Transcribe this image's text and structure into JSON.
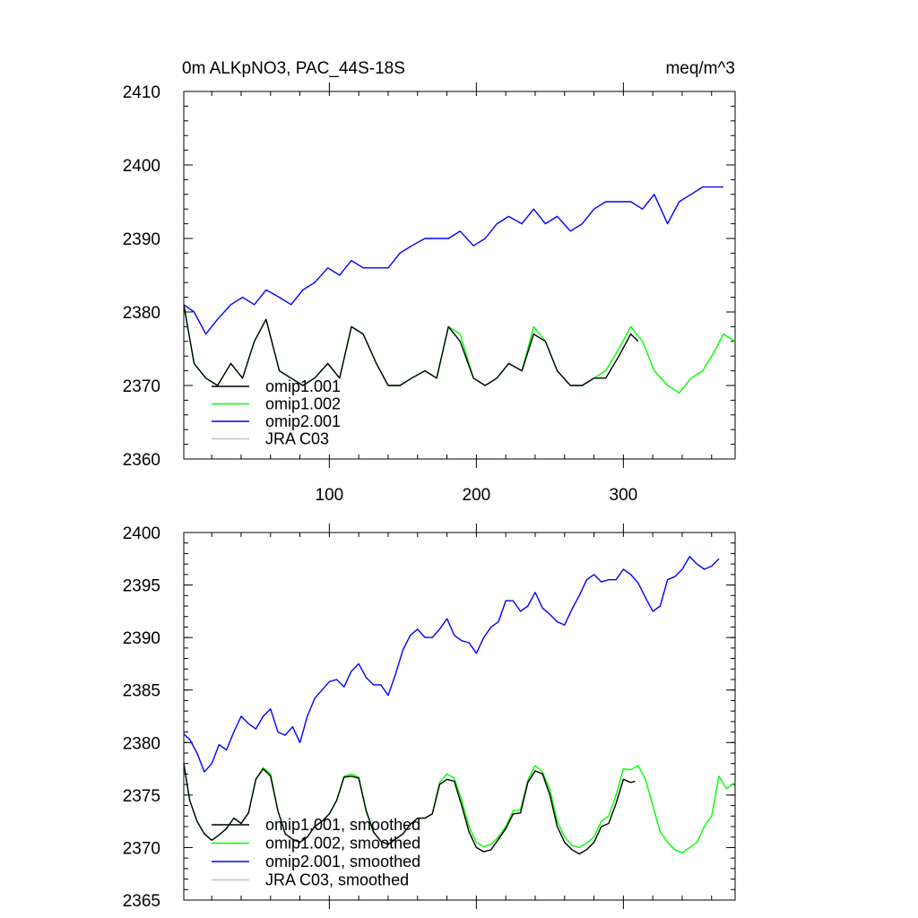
{
  "chart_data": [
    {
      "type": "line",
      "title": "0m ALKpNO3, PAC_44S-18S",
      "units": "meq/m^3",
      "xlabel": "",
      "ylabel": "",
      "xlim": [
        1,
        376
      ],
      "ylim": [
        2360,
        2410
      ],
      "xticks": [
        100,
        200,
        300
      ],
      "yticks": [
        2360,
        2370,
        2380,
        2390,
        2400,
        2410
      ],
      "legend_position": "bottom-left",
      "series": [
        {
          "name": "omip1.001",
          "color": "#000000",
          "x": [
            1,
            8,
            16,
            24,
            33,
            41,
            49,
            57,
            66,
            74,
            82,
            90,
            99,
            107,
            115,
            123,
            132,
            140,
            148,
            156,
            165,
            173,
            181,
            189,
            198,
            206,
            214,
            222,
            231,
            239,
            247,
            255,
            264,
            272,
            280,
            288,
            297,
            305,
            310
          ],
          "y": [
            2381,
            2373,
            2371,
            2370,
            2373,
            2371,
            2376,
            2379,
            2372,
            2371,
            2370,
            2371,
            2373,
            2371,
            2378,
            2377,
            2373,
            2370,
            2370,
            2371,
            2372,
            2371,
            2378,
            2376,
            2371,
            2370,
            2371,
            2373,
            2372,
            2377,
            2376,
            2372,
            2370,
            2370,
            2371,
            2371,
            2374,
            2377,
            2376
          ]
        },
        {
          "name": "omip1.002",
          "color": "#00ff00",
          "x": [
            1,
            8,
            16,
            24,
            33,
            41,
            49,
            57,
            66,
            74,
            82,
            90,
            99,
            107,
            115,
            123,
            132,
            140,
            148,
            156,
            165,
            173,
            181,
            189,
            198,
            206,
            214,
            222,
            231,
            239,
            247,
            255,
            264,
            272,
            280,
            288,
            297,
            305,
            313,
            321,
            330,
            338,
            346,
            354,
            363,
            368,
            376
          ],
          "y": [
            2381,
            2373,
            2371,
            2370,
            2373,
            2371,
            2376,
            2379,
            2372,
            2371,
            2370,
            2371,
            2373,
            2371,
            2378,
            2377,
            2373,
            2370,
            2370,
            2371,
            2372,
            2371,
            2378,
            2377,
            2371,
            2370,
            2371,
            2373,
            2372,
            2378,
            2376,
            2372,
            2370,
            2370,
            2371,
            2372,
            2375,
            2378,
            2376,
            2372,
            2370,
            2369,
            2371,
            2372,
            2375,
            2377,
            2376
          ]
        },
        {
          "name": "omip2.001",
          "color": "#0000ff",
          "x": [
            1,
            8,
            16,
            24,
            33,
            41,
            49,
            57,
            66,
            74,
            82,
            90,
            99,
            107,
            115,
            123,
            132,
            140,
            148,
            156,
            165,
            173,
            181,
            189,
            198,
            206,
            214,
            222,
            231,
            239,
            247,
            255,
            264,
            272,
            280,
            288,
            297,
            305,
            313,
            321,
            330,
            338,
            346,
            354,
            363,
            368
          ],
          "y": [
            2381,
            2380,
            2377,
            2379,
            2381,
            2382,
            2381,
            2383,
            2382,
            2381,
            2383,
            2384,
            2386,
            2385,
            2387,
            2386,
            2386,
            2386,
            2388,
            2389,
            2390,
            2390,
            2390,
            2391,
            2389,
            2390,
            2392,
            2393,
            2392,
            2394,
            2392,
            2393,
            2391,
            2392,
            2394,
            2395,
            2395,
            2395,
            2394,
            2396,
            2392,
            2395,
            2396,
            2397,
            2397,
            2397
          ]
        },
        {
          "name": "JRA C03",
          "color": "#c0c0c0",
          "x": [],
          "y": []
        }
      ]
    },
    {
      "type": "line",
      "title": "",
      "xlabel": "",
      "ylabel": "",
      "xlim": [
        1,
        376
      ],
      "ylim": [
        2365,
        2400
      ],
      "xticks": [
        100,
        200,
        300
      ],
      "yticks": [
        2365,
        2370,
        2375,
        2380,
        2385,
        2390,
        2395,
        2400
      ],
      "legend_position": "bottom-left",
      "series": [
        {
          "name": "omip1.001, smoothed",
          "color": "#000000",
          "x": [
            1,
            5,
            10,
            15,
            20,
            25,
            30,
            35,
            40,
            45,
            50,
            55,
            60,
            65,
            70,
            75,
            80,
            85,
            90,
            95,
            100,
            105,
            110,
            115,
            120,
            125,
            130,
            135,
            140,
            145,
            150,
            155,
            160,
            165,
            170,
            175,
            180,
            185,
            190,
            195,
            200,
            205,
            210,
            215,
            220,
            225,
            230,
            235,
            240,
            245,
            250,
            255,
            260,
            265,
            270,
            275,
            280,
            285,
            290,
            295,
            300,
            305,
            308
          ],
          "y": [
            2378,
            2374.5,
            2372.5,
            2371.3,
            2370.7,
            2371.2,
            2371.8,
            2372.8,
            2372.3,
            2373.3,
            2376.5,
            2377.5,
            2376.8,
            2373.5,
            2371.3,
            2370.8,
            2370.5,
            2371,
            2372,
            2372.5,
            2373.2,
            2374.5,
            2376.7,
            2376.8,
            2376.6,
            2373.5,
            2371.5,
            2370.6,
            2370.3,
            2370.8,
            2371.3,
            2372.2,
            2372.8,
            2372.8,
            2373.2,
            2376,
            2376.5,
            2376.3,
            2374,
            2371.5,
            2370,
            2369.6,
            2369.8,
            2370.8,
            2371.8,
            2373.2,
            2373.3,
            2376.2,
            2377.3,
            2377,
            2375,
            2372,
            2370.5,
            2369.8,
            2369.4,
            2369.8,
            2370.5,
            2372,
            2372.3,
            2374.2,
            2376.5,
            2376.2,
            2376.3
          ]
        },
        {
          "name": "omip1.002, smoothed",
          "color": "#00ff00",
          "x": [
            1,
            5,
            10,
            15,
            20,
            25,
            30,
            35,
            40,
            45,
            50,
            55,
            60,
            65,
            70,
            75,
            80,
            85,
            90,
            95,
            100,
            105,
            110,
            115,
            120,
            125,
            130,
            135,
            140,
            145,
            150,
            155,
            160,
            165,
            170,
            175,
            180,
            185,
            190,
            195,
            200,
            205,
            210,
            215,
            220,
            225,
            230,
            235,
            240,
            245,
            250,
            255,
            260,
            265,
            270,
            275,
            280,
            285,
            290,
            295,
            300,
            305,
            310,
            315,
            320,
            325,
            330,
            335,
            340,
            345,
            350,
            355,
            360,
            365,
            370,
            376
          ],
          "y": [
            2378,
            2374.5,
            2372.5,
            2371.3,
            2370.7,
            2371.2,
            2371.8,
            2372.8,
            2372.3,
            2373.3,
            2376.5,
            2377.6,
            2377,
            2373.5,
            2371.3,
            2370.8,
            2370.5,
            2371,
            2372,
            2372.5,
            2373.2,
            2374.5,
            2376.8,
            2377,
            2376.7,
            2373.6,
            2371.5,
            2370.6,
            2370.3,
            2370.8,
            2371.3,
            2372.2,
            2372.8,
            2372.8,
            2373.2,
            2376.2,
            2377,
            2376.6,
            2374.5,
            2372,
            2370.5,
            2370.1,
            2370.3,
            2371,
            2372,
            2373.5,
            2373.6,
            2376.4,
            2377.8,
            2377.2,
            2375.5,
            2372.5,
            2371,
            2370.2,
            2370,
            2370.4,
            2371,
            2372.5,
            2373,
            2375,
            2377.5,
            2377.4,
            2377.8,
            2376.5,
            2374,
            2371.5,
            2370.5,
            2369.8,
            2369.5,
            2370,
            2370.5,
            2372,
            2373,
            2376.8,
            2375.6,
            2376.2
          ]
        },
        {
          "name": "omip2.001, smoothed",
          "color": "#0000ff",
          "x": [
            1,
            5,
            10,
            15,
            20,
            25,
            30,
            35,
            40,
            45,
            50,
            55,
            60,
            65,
            70,
            75,
            80,
            85,
            90,
            95,
            100,
            105,
            110,
            115,
            120,
            125,
            130,
            135,
            140,
            145,
            150,
            155,
            160,
            165,
            170,
            175,
            180,
            185,
            190,
            195,
            200,
            205,
            210,
            215,
            220,
            225,
            230,
            235,
            240,
            245,
            250,
            255,
            260,
            265,
            270,
            275,
            280,
            285,
            290,
            295,
            300,
            305,
            310,
            315,
            320,
            325,
            330,
            335,
            340,
            345,
            350,
            355,
            360,
            365
          ],
          "y": [
            2380.8,
            2380.3,
            2379,
            2377.2,
            2378,
            2379.8,
            2379.3,
            2381,
            2382.5,
            2381.8,
            2381.3,
            2382.5,
            2383.2,
            2381,
            2380.7,
            2381.5,
            2380,
            2382.5,
            2384.2,
            2385,
            2385.8,
            2386,
            2385.3,
            2386.8,
            2387.5,
            2386.2,
            2385.5,
            2385.5,
            2384.5,
            2386.5,
            2388.8,
            2390.2,
            2390.8,
            2390,
            2390,
            2390.8,
            2391.8,
            2390.2,
            2389.7,
            2389.5,
            2388.5,
            2390,
            2391,
            2391.5,
            2393.5,
            2393.5,
            2392.5,
            2393,
            2394.3,
            2392.8,
            2392.2,
            2391.5,
            2391.2,
            2392.7,
            2394,
            2395.5,
            2396,
            2395.3,
            2395.5,
            2395.5,
            2396.5,
            2396,
            2395.2,
            2393.8,
            2392.5,
            2393,
            2395.5,
            2395.8,
            2396.5,
            2397.7,
            2397,
            2396.5,
            2396.8,
            2397.5
          ]
        },
        {
          "name": "JRA C03, smoothed",
          "color": "#c0c0c0",
          "x": [],
          "y": []
        }
      ]
    }
  ]
}
